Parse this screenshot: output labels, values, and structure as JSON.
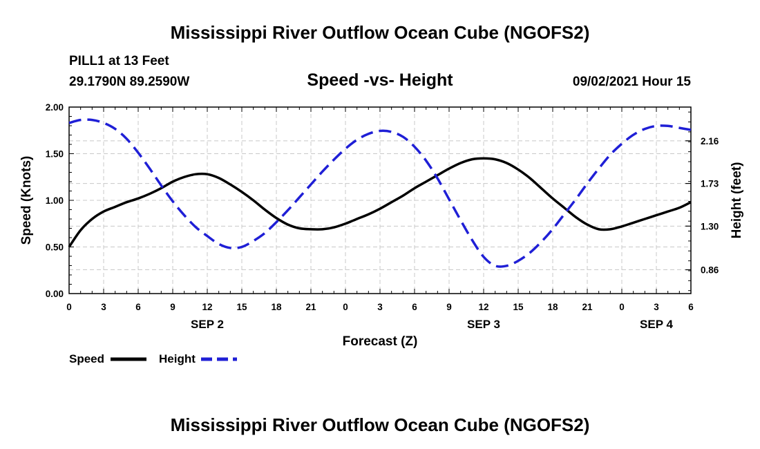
{
  "page": {
    "title_top": "Mississippi River Outflow Ocean Cube (NGOFS2)",
    "title_bottom": "Mississippi River Outflow Ocean Cube (NGOFS2)",
    "station": "PILL1 at 13 Feet",
    "coords": "29.1790N  89.2590W",
    "datetime": "09/02/2021 Hour 15"
  },
  "chart_data": {
    "type": "line",
    "title": "Speed -vs- Height",
    "xlabel": "Forecast (Z)",
    "ylabel": "Speed (Knots)",
    "y2label": "Height (feet)",
    "xlim": [
      0,
      54
    ],
    "ylim": [
      0,
      2.0
    ],
    "y2lim": [
      0.62,
      2.5
    ],
    "x_tick_values": [
      0,
      3,
      6,
      9,
      12,
      15,
      18,
      21,
      24,
      27,
      30,
      33,
      36,
      39,
      42,
      45,
      48,
      51,
      54
    ],
    "x_tick_labels": [
      "0",
      "3",
      "6",
      "9",
      "12",
      "15",
      "18",
      "21",
      "0",
      "3",
      "6",
      "9",
      "12",
      "15",
      "18",
      "21",
      "0",
      "3",
      "6"
    ],
    "date_labels": [
      {
        "x": 12,
        "label": "SEP 2"
      },
      {
        "x": 36,
        "label": "SEP 3"
      },
      {
        "x": 51,
        "label": "SEP 4"
      }
    ],
    "y_ticks": [
      0.0,
      0.5,
      1.0,
      1.5,
      2.0
    ],
    "y_tick_labels": [
      "0.00",
      "0.50",
      "1.00",
      "1.50",
      "2.00"
    ],
    "y2_ticks": [
      0.86,
      1.3,
      1.73,
      2.16
    ],
    "y2_tick_labels": [
      "0.86",
      "1.30",
      "1.73",
      "2.16"
    ],
    "grid": true,
    "legend_position": "bottom-left",
    "series": [
      {
        "name": "Speed",
        "axis": "left",
        "color": "#000000",
        "style": "solid",
        "x": [
          0,
          1,
          2,
          3,
          4,
          5,
          6,
          7,
          8,
          9,
          10,
          11,
          12,
          13,
          14,
          15,
          16,
          17,
          18,
          19,
          20,
          21,
          22,
          23,
          24,
          25,
          26,
          27,
          28,
          29,
          30,
          31,
          32,
          33,
          34,
          35,
          36,
          37,
          38,
          39,
          40,
          41,
          42,
          43,
          44,
          45,
          46,
          47,
          48,
          49,
          50,
          51,
          52,
          53,
          54
        ],
        "values": [
          0.5,
          0.68,
          0.8,
          0.88,
          0.93,
          0.98,
          1.02,
          1.07,
          1.13,
          1.2,
          1.25,
          1.28,
          1.28,
          1.24,
          1.17,
          1.09,
          1.0,
          0.9,
          0.81,
          0.74,
          0.7,
          0.69,
          0.69,
          0.71,
          0.75,
          0.8,
          0.85,
          0.91,
          0.98,
          1.05,
          1.13,
          1.2,
          1.27,
          1.34,
          1.4,
          1.44,
          1.45,
          1.44,
          1.4,
          1.33,
          1.24,
          1.13,
          1.02,
          0.92,
          0.82,
          0.74,
          0.69,
          0.69,
          0.72,
          0.76,
          0.8,
          0.84,
          0.88,
          0.92,
          0.98
        ]
      },
      {
        "name": "Height",
        "axis": "right",
        "color": "#1f1fd6",
        "style": "dashed",
        "x": [
          0,
          1,
          2,
          3,
          4,
          5,
          6,
          7,
          8,
          9,
          10,
          11,
          12,
          13,
          14,
          15,
          16,
          17,
          18,
          19,
          20,
          21,
          22,
          23,
          24,
          25,
          26,
          27,
          28,
          29,
          30,
          31,
          32,
          33,
          34,
          35,
          36,
          37,
          38,
          39,
          40,
          41,
          42,
          43,
          44,
          45,
          46,
          47,
          48,
          49,
          50,
          51,
          52,
          53,
          54
        ],
        "values": [
          2.34,
          2.37,
          2.37,
          2.34,
          2.28,
          2.18,
          2.04,
          1.88,
          1.71,
          1.55,
          1.41,
          1.29,
          1.2,
          1.12,
          1.08,
          1.09,
          1.15,
          1.23,
          1.34,
          1.46,
          1.59,
          1.72,
          1.85,
          1.97,
          2.08,
          2.17,
          2.23,
          2.26,
          2.25,
          2.2,
          2.1,
          1.96,
          1.78,
          1.57,
          1.36,
          1.16,
          0.99,
          0.9,
          0.9,
          0.95,
          1.03,
          1.14,
          1.27,
          1.42,
          1.57,
          1.73,
          1.88,
          2.02,
          2.13,
          2.22,
          2.28,
          2.31,
          2.31,
          2.29,
          2.27
        ]
      }
    ]
  }
}
